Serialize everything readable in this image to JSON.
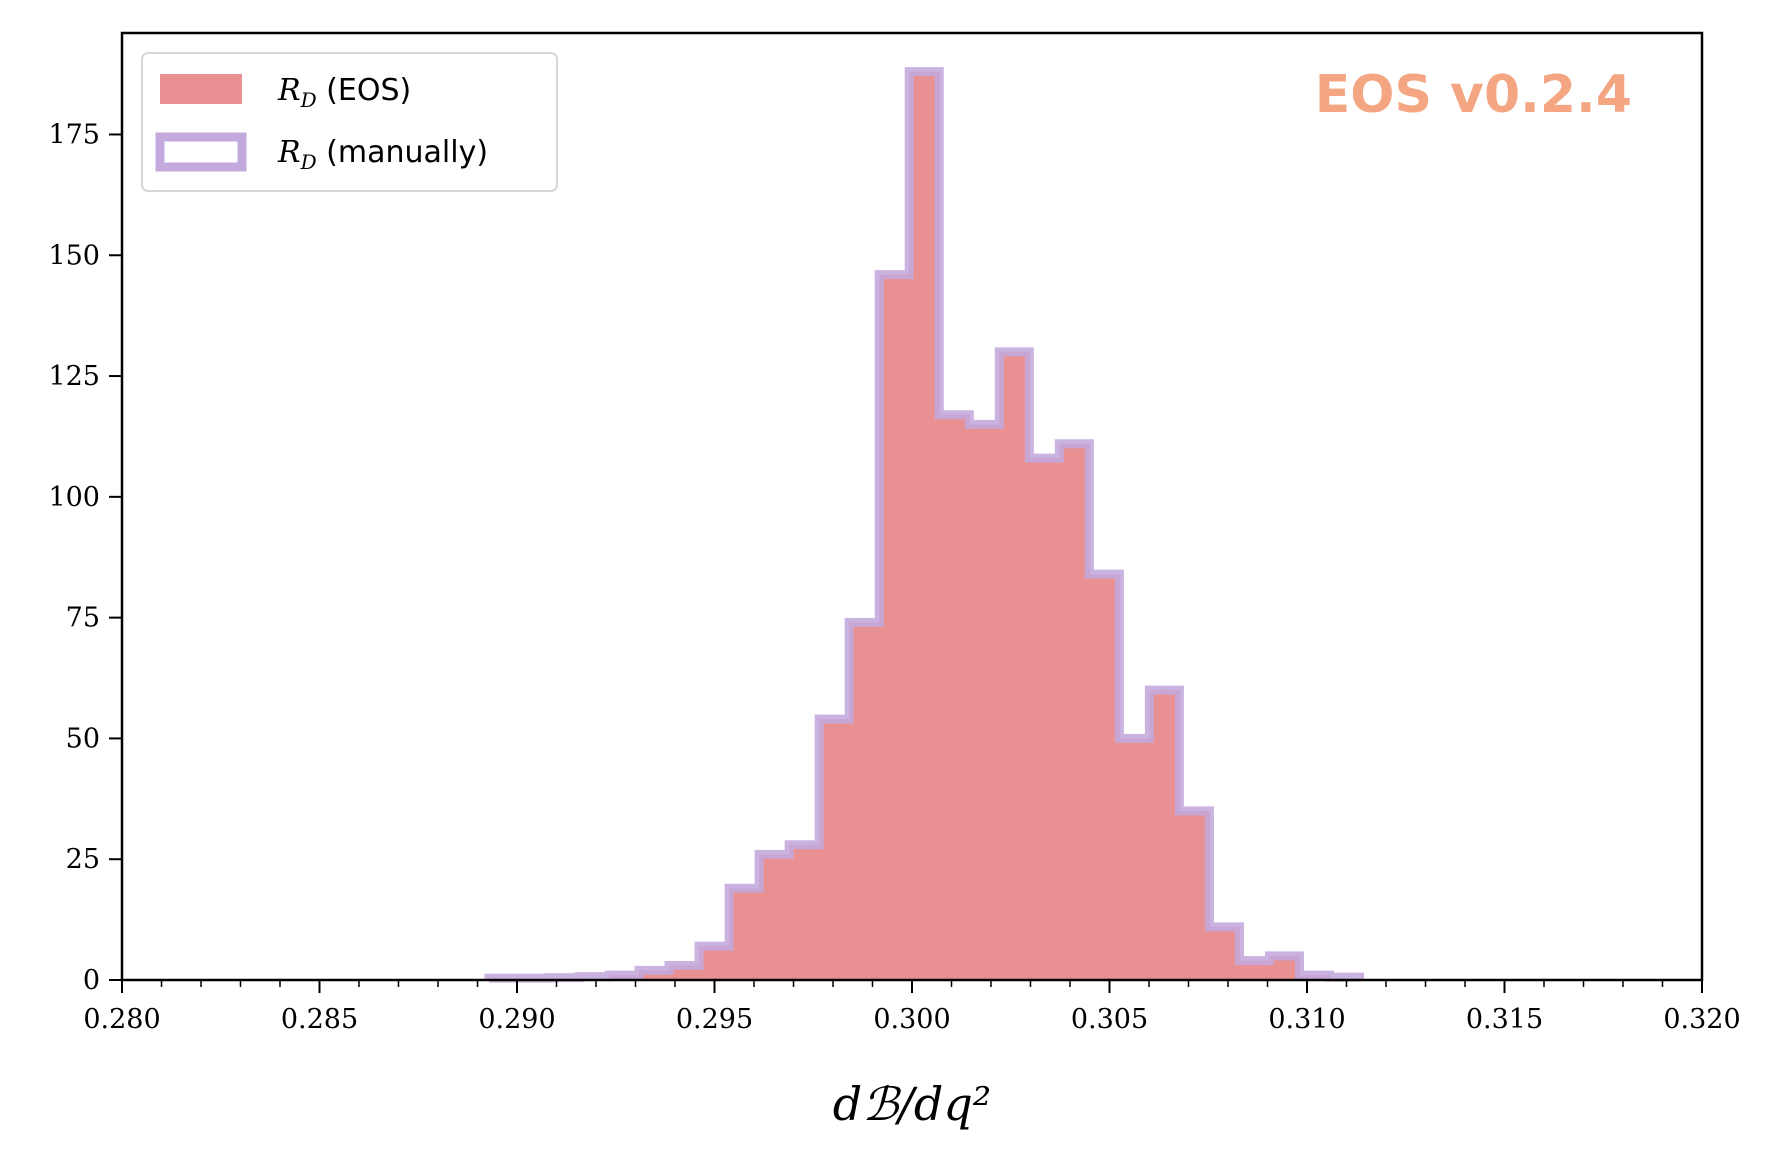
{
  "chart_data": {
    "type": "histogram",
    "xlabel": "dℬ/dq²",
    "ylabel": "",
    "xlim": [
      0.28,
      0.32
    ],
    "ylim": [
      0,
      196
    ],
    "x_ticks": [
      "0.280",
      "0.285",
      "0.290",
      "0.295",
      "0.300",
      "0.305",
      "0.310",
      "0.315",
      "0.320"
    ],
    "y_ticks": [
      "0",
      "25",
      "50",
      "75",
      "100",
      "125",
      "150",
      "175"
    ],
    "annotation": "EOS v0.2.4",
    "annotation_color": "#f4a582",
    "legend_position": "upper-left",
    "legend": [
      {
        "label": "R_D (EOS)",
        "display": "R",
        "sub": "D",
        "rest": " (EOS)"
      },
      {
        "label": "R_D (manually)",
        "display": "R",
        "sub": "D",
        "rest": " (manually)"
      }
    ],
    "bin_edges": [
      0.28929,
      0.29005,
      0.29081,
      0.29157,
      0.29233,
      0.29309,
      0.29385,
      0.29461,
      0.29537,
      0.29613,
      0.29689,
      0.29765,
      0.29841,
      0.29917,
      0.29993,
      0.30069,
      0.30145,
      0.30221,
      0.30297,
      0.30373,
      0.30449,
      0.30525,
      0.30601,
      0.30677,
      0.30753,
      0.30829,
      0.30905,
      0.30981,
      0.31057,
      0.31133
    ],
    "series": [
      {
        "name": "R_D (EOS)",
        "style": "filled",
        "color": "#e99192",
        "counts": [
          0,
          0,
          0,
          0,
          1,
          2,
          3,
          7,
          19,
          26,
          28,
          54,
          74,
          146,
          188,
          117,
          115,
          130,
          108,
          111,
          84,
          50,
          60,
          35,
          11,
          4,
          5,
          1,
          0
        ]
      },
      {
        "name": "R_D (manually)",
        "style": "step",
        "color": "#c3a9dd",
        "counts": [
          0.4,
          0.4,
          0.5,
          0.7,
          1,
          2,
          3,
          7,
          19,
          26,
          28,
          54,
          74,
          146,
          188,
          117,
          115,
          130,
          108,
          111,
          84,
          50,
          60,
          35,
          11,
          4,
          5,
          1,
          0.6
        ]
      }
    ]
  }
}
